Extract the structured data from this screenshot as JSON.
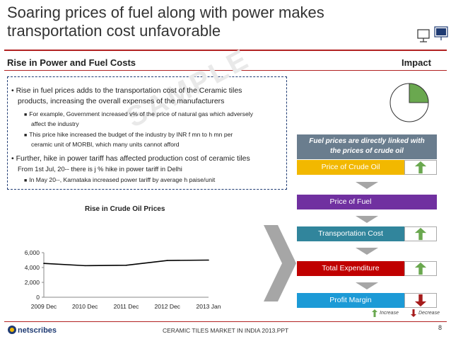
{
  "header": {
    "title_line1": "Soaring prices of fuel along with power makes",
    "title_line2": "transportation cost unfavorable"
  },
  "left_section": {
    "heading": "Rise in Power and Fuel Costs",
    "bullets": [
      {
        "line1": "• Rise in fuel prices adds to the transportation cost of the Ceramic tiles",
        "line2": "  products, increasing the overall expenses of the manufacturers",
        "sub": [
          {
            "line1": "For example, Government increased v% of the price of natural gas which adversely",
            "line2": "affect the industry"
          },
          {
            "line1": "This price hike increased the budget of the industry by INR f mn to h mn per",
            "line2": "ceramic unit of MORBI, which many units cannot afford"
          }
        ]
      },
      {
        "line1": "• Further, hike in power tariff has affected production cost of ceramic tiles",
        "line2": "From 1st Jul, 20-- there is j % hike in power tariff in Delhi",
        "sub": [
          {
            "line1": "In May 20--, Karnataka increased power tariff by average h paise/unit"
          }
        ]
      }
    ],
    "watermark": "SAMPLE",
    "chart_title": "Rise in Crude Oil Prices"
  },
  "chart_data": {
    "type": "line",
    "title": "Rise in Crude Oil Prices",
    "categories": [
      "2009 Dec",
      "2010 Dec",
      "2011 Dec",
      "2012 Dec",
      "2013 Jan"
    ],
    "series": [
      {
        "values": [
          4550,
          4250,
          4300,
          4950,
          5000
        ]
      }
    ],
    "y_ticks": [
      "0",
      "2,000",
      "4,000",
      "6,000"
    ],
    "ylim": [
      0,
      6000
    ],
    "grid": false,
    "line_color": "#000000"
  },
  "right_section": {
    "heading": "Impact",
    "pie_fraction": 0.25,
    "info_box_line1": "Fuel prices are directly linked with",
    "info_box_line2": "the prices of crude oil",
    "rows": [
      {
        "label": "Price of Crude Oil",
        "color": "#f2b800",
        "direction": "increase"
      },
      {
        "label": "Price of Fuel",
        "color": "#7030a0",
        "direction": "none"
      },
      {
        "label": "Transportation Cost",
        "color": "#31859c",
        "direction": "increase"
      },
      {
        "label": "Total Expenditure",
        "color": "#c00000",
        "direction": "increase"
      },
      {
        "label": "Profit Margin",
        "color": "#1c9ad6",
        "direction": "decrease"
      }
    ],
    "legend_increase": "Increase",
    "legend_decrease": "Decrease",
    "increase_color": "#6aa84f",
    "decrease_color": "#a61c1c"
  },
  "footer": {
    "logo_text": "netscribes",
    "document_title": "CERAMIC TILES MARKET IN INDIA 2013.PPT",
    "page_number": "8"
  },
  "colors": {
    "accent_rule": "#b22222",
    "chevron": "#a6a6a6"
  }
}
